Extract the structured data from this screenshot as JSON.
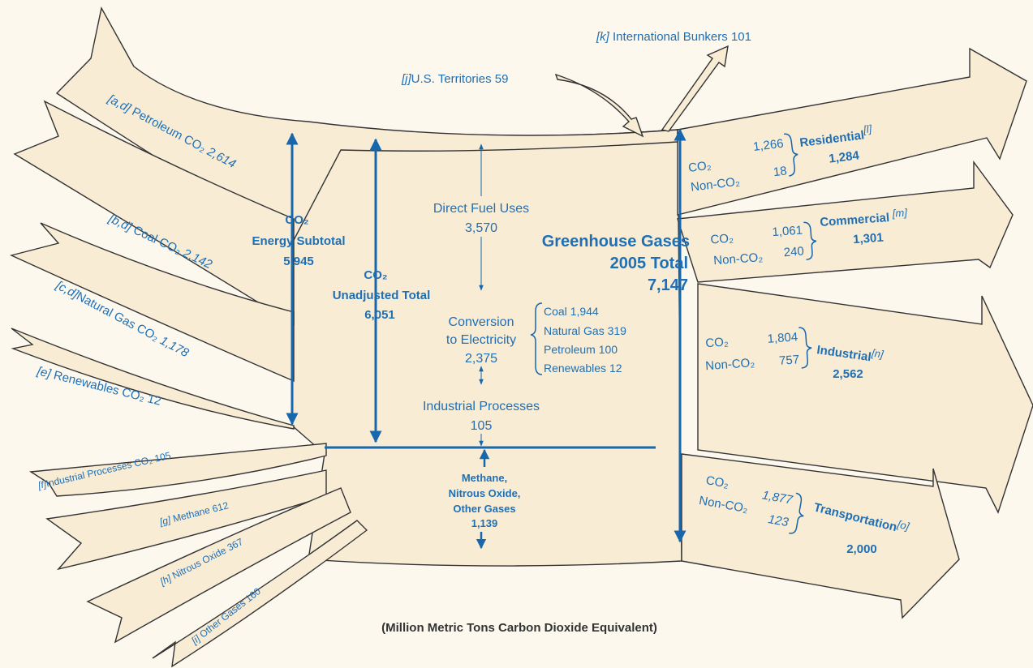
{
  "inputs": [
    {
      "note": "[a,d]",
      "label": "Petroleum CO₂",
      "value": "2,614"
    },
    {
      "note": "[b,d]",
      "label": "Coal CO₂",
      "value": "2,142"
    },
    {
      "note": "[c,d]",
      "label": "Natural Gas CO₂",
      "value": "1,178"
    },
    {
      "note": "[e]",
      "label": "Renewables CO₂",
      "value": "12"
    },
    {
      "note": "[f]",
      "label": "Industrial Processes CO₂",
      "value": "105"
    },
    {
      "note": "[g]",
      "label": "Methane",
      "value": "612"
    },
    {
      "note": "[h]",
      "label": "Nitrous Oxide",
      "value": "367"
    },
    {
      "note": "[i]",
      "label": "Other Gases",
      "value": "160"
    }
  ],
  "territories": {
    "note": "[j]",
    "label": "U.S. Territories",
    "value": "59"
  },
  "bunkers": {
    "note": "[k]",
    "label": "International Bunkers",
    "value": "101"
  },
  "energy_subtotal": {
    "title": "CO₂",
    "subtitle": "Energy Subtotal",
    "value": "5,945"
  },
  "unadjusted_total": {
    "title": "CO₂",
    "subtitle": "Unadjusted Total",
    "value": "6,051"
  },
  "direct_fuel": {
    "label": "Direct Fuel Uses",
    "value": "3,570"
  },
  "conversion": {
    "lines": [
      "Conversion",
      "to Electricity"
    ],
    "value": "2,375",
    "breakdown": [
      {
        "name": "Coal",
        "value": "1,944"
      },
      {
        "name": "Natural Gas",
        "value": "319"
      },
      {
        "name": "Petroleum",
        "value": "100"
      },
      {
        "name": "Renewables",
        "value": "12"
      }
    ]
  },
  "industrial_processes": {
    "label": "Industrial Processes",
    "value": "105"
  },
  "other_gases": {
    "lines": [
      "Methane,",
      "Nitrous Oxide,",
      "Other Gases"
    ],
    "value": "1,139"
  },
  "ghg_total": {
    "title": "Greenhouse Gases",
    "subtitle": "2005 Total",
    "value": "7,147"
  },
  "sectors": [
    {
      "name": "Residential",
      "note": "[l]",
      "total": "1,284",
      "rows": [
        {
          "label": "CO₂",
          "value": "1,266"
        },
        {
          "label": "Non-CO₂",
          "value": "18"
        }
      ]
    },
    {
      "name": "Commercial",
      "note": "[m]",
      "total": "1,301",
      "rows": [
        {
          "label": "CO₂",
          "value": "1,061"
        },
        {
          "label": "Non-CO₂",
          "value": "240"
        }
      ]
    },
    {
      "name": "Industrial",
      "note": "[n]",
      "total": "2,562",
      "rows": [
        {
          "label": "CO₂",
          "value": "1,804"
        },
        {
          "label": "Non-CO₂",
          "value": "757"
        }
      ]
    },
    {
      "name": "Transportation",
      "note": "[o]",
      "total": "2,000",
      "rows": [
        {
          "label": "CO₂",
          "value": "1,877"
        },
        {
          "label": "Non-CO₂",
          "value": "123"
        }
      ]
    }
  ],
  "units": "(Million Metric Tons Carbon Dioxide Equivalent)"
}
